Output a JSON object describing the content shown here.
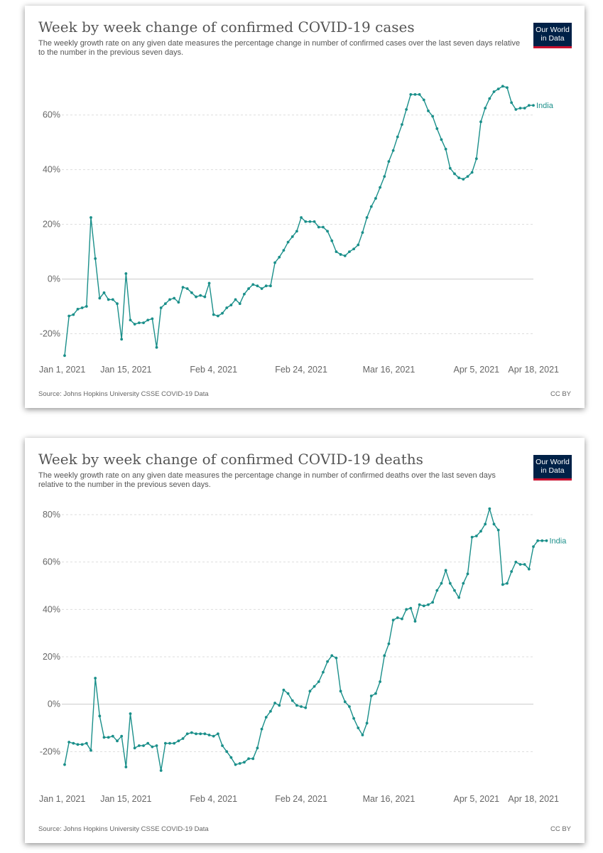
{
  "chart_data": [
    {
      "type": "line",
      "title": "Week by week change of confirmed COVID-19 cases",
      "subtitle": "The weekly growth rate on any given date measures the percentage change in number of confirmed cases over the last seven days relative to the number in the previous seven days.",
      "source": "Source: Johns Hopkins University CSSE COVID-19 Data",
      "license": "CC BY",
      "logo": [
        "Our World",
        "in Data"
      ],
      "ylim": [
        -30,
        75
      ],
      "yticks": [
        -20,
        0,
        20,
        40,
        60
      ],
      "ytick_labels": [
        "-20%",
        "0%",
        "20%",
        "40%",
        "60%"
      ],
      "xdomain": [
        0,
        107
      ],
      "xticks": [
        0,
        14,
        34,
        54,
        74,
        94,
        107
      ],
      "xtick_labels": [
        "Jan 1, 2021",
        "Jan 15, 2021",
        "Feb 4, 2021",
        "Feb 24, 2021",
        "Mar 16, 2021",
        "Apr 5, 2021",
        "Apr 18, 2021"
      ],
      "line_color": "#1a8f8a",
      "series": [
        {
          "name": "India",
          "values": [
            -28,
            -13.5,
            -13,
            -11,
            -10.5,
            -10,
            22.5,
            7.5,
            -7,
            -5,
            -7.5,
            -7.5,
            -9,
            -22,
            2,
            -15,
            -16.5,
            -16,
            -16,
            -15,
            -14.5,
            -25,
            -10.5,
            -9,
            -7.5,
            -7,
            -8.5,
            -3,
            -3.5,
            -5,
            -6.5,
            -6,
            -6.5,
            -1.5,
            -13,
            -13.5,
            -12.5,
            -10.5,
            -9.5,
            -7.5,
            -9,
            -5.5,
            -3.5,
            -2,
            -2.5,
            -3.5,
            -2.5,
            -2.5,
            6,
            8,
            10.5,
            13.5,
            15.5,
            17.5,
            22.5,
            21,
            21,
            21,
            19,
            19,
            17.5,
            14,
            10,
            9,
            8.5,
            10,
            11,
            12.5,
            17,
            22.5,
            26.5,
            29.5,
            33.5,
            37.5,
            43,
            47,
            52,
            56.5,
            62,
            67.5,
            67.5,
            67.5,
            65.5,
            61.5,
            59.5,
            55,
            51,
            47.5,
            40.5,
            38.5,
            37,
            36.5,
            37.5,
            39,
            44,
            57.5,
            62.5,
            66,
            68.5,
            69.5,
            70.5,
            70,
            64.5,
            62,
            62.5,
            62.5,
            63.5,
            63.5
          ]
        }
      ]
    },
    {
      "type": "line",
      "title": "Week by week change of confirmed COVID-19 deaths",
      "subtitle": "The weekly growth rate on any given date measures the percentage change in number of confirmed deaths over the last seven days relative to the number in the previous seven days.",
      "source": "Source: Johns Hopkins University CSSE COVID-19 Data",
      "license": "CC BY",
      "logo": [
        "Our World",
        "in Data"
      ],
      "ylim": [
        -31,
        86
      ],
      "yticks": [
        -20,
        0,
        20,
        40,
        60,
        80
      ],
      "ytick_labels": [
        "-20%",
        "0%",
        "20%",
        "40%",
        "60%",
        "80%"
      ],
      "xdomain": [
        0,
        107
      ],
      "xticks": [
        0,
        14,
        34,
        54,
        74,
        94,
        107
      ],
      "xtick_labels": [
        "Jan 1, 2021",
        "Jan 15, 2021",
        "Feb 4, 2021",
        "Feb 24, 2021",
        "Mar 16, 2021",
        "Apr 5, 2021",
        "Apr 18, 2021"
      ],
      "line_color": "#1a8f8a",
      "series": [
        {
          "name": "India",
          "values": [
            -25.5,
            -16,
            -16.5,
            -17,
            -17,
            -16.5,
            -19.5,
            11,
            -5,
            -14,
            -14,
            -13.5,
            -15.5,
            -13.5,
            -26.5,
            -4,
            -18.5,
            -17.5,
            -17.5,
            -16.5,
            -18,
            -17.5,
            -28,
            -16.5,
            -16.5,
            -16.5,
            -15.5,
            -14.5,
            -12.5,
            -12,
            -12.5,
            -12.5,
            -12.5,
            -13,
            -13.5,
            -12.5,
            -17.5,
            -20,
            -22.5,
            -25.5,
            -25,
            -24.5,
            -23,
            -23,
            -18.5,
            -10.5,
            -5.5,
            -3,
            0.5,
            -0.5,
            6,
            4.5,
            1.5,
            -0.5,
            -1,
            -1.5,
            5.5,
            7.5,
            9.5,
            13.5,
            18,
            20.5,
            19.5,
            5.5,
            1,
            -1,
            -6,
            -10,
            -13,
            -8,
            3.5,
            4.5,
            9.5,
            20.5,
            25.5,
            35.5,
            36.5,
            36,
            40,
            40.5,
            35,
            42,
            41.5,
            42,
            43,
            48,
            51,
            56.5,
            51,
            48,
            45,
            51,
            55,
            70.5,
            71,
            73,
            76,
            82.5,
            76,
            73.5,
            50.5,
            51,
            56,
            60,
            59,
            59,
            57,
            66.5,
            69,
            69,
            69
          ]
        }
      ]
    }
  ]
}
